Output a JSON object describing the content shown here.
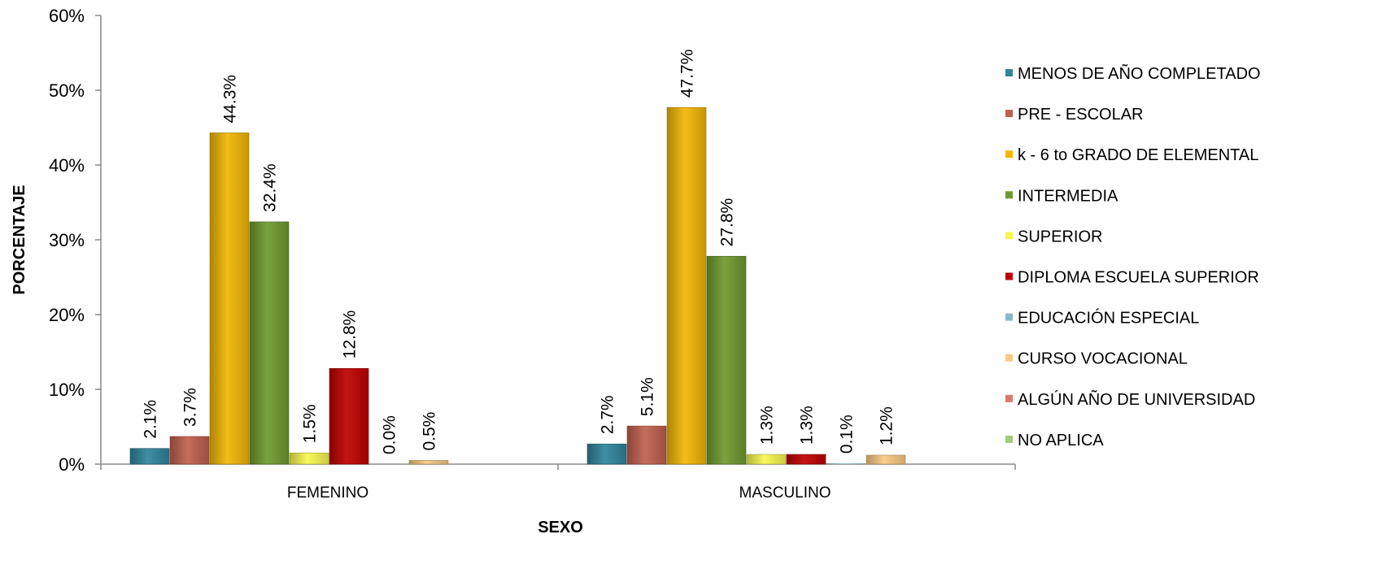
{
  "chart_data": {
    "type": "bar",
    "categories": [
      "FEMENINO",
      "MASCULINO"
    ],
    "xlabel": "SEXO",
    "ylabel": "PORCENTAJE",
    "ylim": [
      0,
      60
    ],
    "yticks": [
      0,
      10,
      20,
      30,
      40,
      50,
      60
    ],
    "ytick_format": "%",
    "grid": false,
    "legend_position": "right",
    "series": [
      {
        "name": "MENOS DE AÑO COMPLETADO",
        "color": "#31849b",
        "values": [
          2.1,
          2.7
        ],
        "labels": [
          "2.1%",
          "2.7%"
        ]
      },
      {
        "name": "PRE - ESCOLAR",
        "color": "#c0604d",
        "values": [
          3.7,
          5.1
        ],
        "labels": [
          "3.7%",
          "5.1%"
        ]
      },
      {
        "name": "k - 6 to GRADO DE ELEMENTAL",
        "color": "#f2b705",
        "values": [
          44.3,
          47.7
        ],
        "labels": [
          "44.3%",
          "47.7%"
        ]
      },
      {
        "name": "INTERMEDIA",
        "color": "#6f9a2e",
        "values": [
          32.4,
          27.8
        ],
        "labels": [
          "32.4%",
          "27.8%"
        ]
      },
      {
        "name": "SUPERIOR",
        "color": "#f7f750",
        "values": [
          1.5,
          1.3
        ],
        "labels": [
          "1.5%",
          "1.3%"
        ]
      },
      {
        "name": "DIPLOMA ESCUELA SUPERIOR",
        "color": "#c00000",
        "values": [
          12.8,
          1.3
        ],
        "labels": [
          "12.8%",
          "1.3%"
        ]
      },
      {
        "name": "EDUCACIÓN ESPECIAL",
        "color": "#8ab7c7",
        "values": [
          0.0,
          0.1
        ],
        "labels": [
          "0.0%",
          "0.1%"
        ]
      },
      {
        "name": "CURSO VOCACIONAL",
        "color": "#fac983",
        "values": [
          0.5,
          1.2
        ],
        "labels": [
          "0.5%",
          "1.2%"
        ]
      },
      {
        "name": "ALGÚN AÑO DE UNIVERSIDAD",
        "color": "#d9796d",
        "values": [
          0.0,
          0.0
        ],
        "labels": [
          "",
          ""
        ]
      },
      {
        "name": "NO APLICA",
        "color": "#a6c97a",
        "values": [
          0.0,
          0.0
        ],
        "labels": [
          "",
          ""
        ]
      }
    ]
  }
}
